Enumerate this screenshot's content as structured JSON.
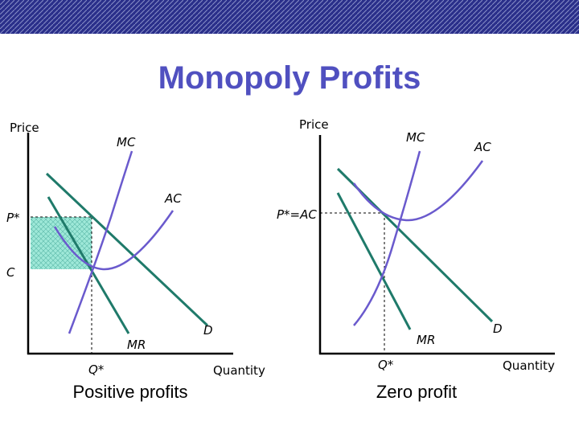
{
  "title": "Monopoly Profits",
  "left": {
    "y_label": "Price",
    "mc": "MC",
    "ac": "AC",
    "p_star": "P*",
    "c": "C",
    "mr": "MR",
    "d": "D",
    "q_star": "Q*",
    "x_label": "Quantity",
    "caption": "Positive profits"
  },
  "right": {
    "y_label": "Price",
    "mc": "MC",
    "ac": "AC",
    "p_star": "P*=AC",
    "mr": "MR",
    "d": "D",
    "q_star": "Q*",
    "x_label": "Quantity",
    "caption": "Zero profit"
  }
}
